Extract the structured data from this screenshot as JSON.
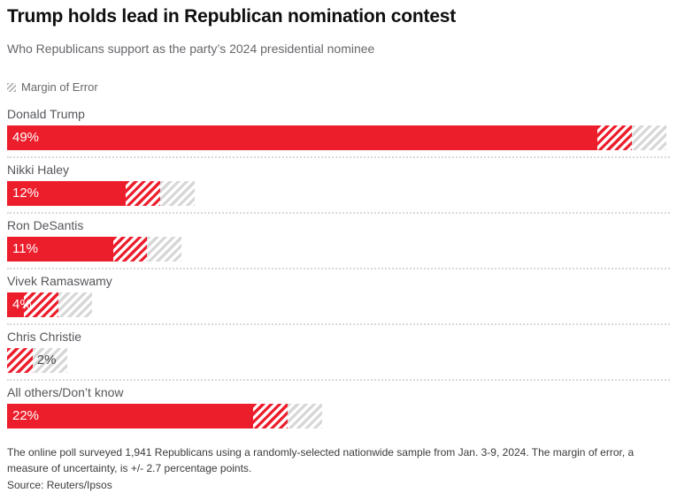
{
  "page": {
    "title": "Trump holds lead in Republican nomination contest",
    "subtitle": "Who Republicans support as the party’s 2024 presidential nominee",
    "note": "The online poll surveyed 1,941 Republicans using a randomly-selected nationwide sample from Jan. 3-9, 2024. The margin of error, a measure of uncertainty, is +/- 2.7 percentage points.",
    "source": "Source: Reuters/Ipsos"
  },
  "legend": {
    "icon": "hatch-swatch-icon",
    "label": "Margin of Error"
  },
  "chart_data": {
    "type": "bar",
    "orientation": "horizontal",
    "title": "Trump holds lead in Republican nomination contest",
    "subtitle": "Who Republicans support as the party’s 2024 presidential nominee",
    "categories": [
      "Donald Trump",
      "Nikki Haley",
      "Ron DeSantis",
      "Vivek Ramaswamy",
      "Chris Christie",
      "All others/Don’t know"
    ],
    "values": [
      49,
      12,
      11,
      4,
      2,
      22
    ],
    "value_labels": [
      "49%",
      "12%",
      "11%",
      "4%",
      "2%",
      "22%"
    ],
    "label_inside": [
      true,
      true,
      true,
      true,
      false,
      true
    ],
    "margin_of_error_pct": 2.7,
    "xlim": [
      0,
      52
    ],
    "grid": false,
    "legend_entries": [
      "Margin of Error"
    ],
    "colors": {
      "bar": "#EC1E2C",
      "moe_within_hatch": "#EC1E2C",
      "moe_beyond_hatch": "#D7D7D7"
    }
  }
}
